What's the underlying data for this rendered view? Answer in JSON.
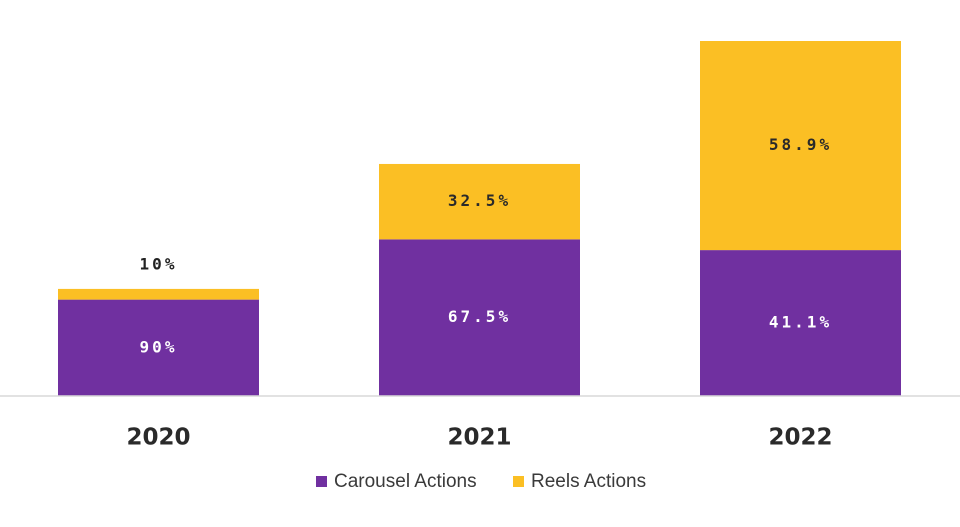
{
  "chart_data": {
    "type": "bar",
    "stacked": true,
    "categories": [
      "2020",
      "2021",
      "2022"
    ],
    "series": [
      {
        "name": "Carousel Actions",
        "color": "#7030a0",
        "values": [
          90,
          67.5,
          41.1
        ],
        "labels": [
          "90%",
          "67.5%",
          "41.1%"
        ]
      },
      {
        "name": "Reels Actions",
        "color": "#fbbf24",
        "values": [
          10,
          32.5,
          58.9
        ],
        "labels": [
          "10%",
          "32.5%",
          "58.9%"
        ]
      }
    ],
    "category_totals": [
      27,
      58.5,
      89.5
    ],
    "legend_position": "bottom",
    "grid": false
  }
}
